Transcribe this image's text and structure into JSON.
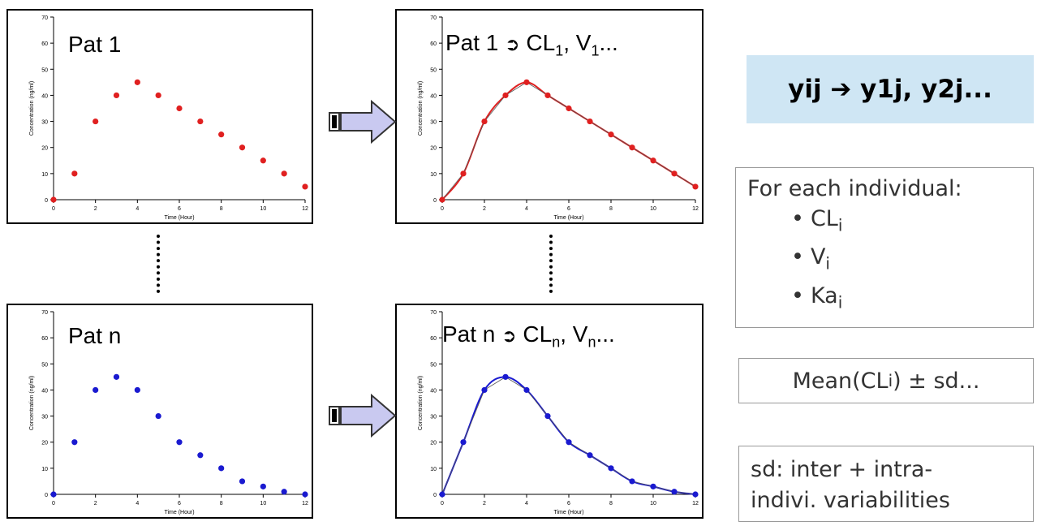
{
  "panels": [
    {
      "id": "p1",
      "title": "Pat 1",
      "color": "#e02020",
      "fitted": false,
      "ylabel": "Concentration (ng/ml)",
      "xlabel": "Time (Hour)",
      "chart": {
        "type": "scatter",
        "x": [
          0,
          1,
          2,
          3,
          4,
          5,
          6,
          7,
          8,
          9,
          10,
          11,
          12
        ],
        "y": [
          0,
          10,
          30,
          40,
          45,
          40,
          35,
          30,
          25,
          20,
          15,
          10,
          5
        ]
      }
    },
    {
      "id": "p2",
      "title": "Pat 1",
      "param1": "CL",
      "sub1": "1",
      "param2": "V",
      "sub2": "1",
      "ellipsis": "...",
      "color": "#e02020",
      "fitted": true,
      "ylabel": "Concentration (ng/ml)",
      "xlabel": "Time (Hour)",
      "chart": {
        "type": "line",
        "x": [
          0,
          1,
          2,
          3,
          4,
          5,
          6,
          7,
          8,
          9,
          10,
          11,
          12
        ],
        "y": [
          0,
          10,
          30,
          40,
          45,
          40,
          35,
          30,
          25,
          20,
          15,
          10,
          5
        ]
      }
    },
    {
      "id": "p3",
      "title": "Pat n",
      "color": "#1a1ad0",
      "fitted": false,
      "ylabel": "Concentration (ng/ml)",
      "xlabel": "Time (Hour)",
      "chart": {
        "type": "scatter",
        "x": [
          0,
          1,
          2,
          3,
          4,
          5,
          6,
          7,
          8,
          9,
          10,
          11,
          12
        ],
        "y": [
          0,
          20,
          40,
          45,
          40,
          30,
          20,
          15,
          10,
          5,
          3,
          1,
          0
        ]
      }
    },
    {
      "id": "p4",
      "title": "Pat n",
      "param1": "CL",
      "sub1": "n",
      "param2": "V",
      "sub2": "n",
      "ellipsis": "...",
      "color": "#1a1ad0",
      "fitted": true,
      "ylabel": "Concentration (ng/ml)",
      "xlabel": "Time (Hour)",
      "chart": {
        "type": "line",
        "x": [
          0,
          1,
          2,
          3,
          4,
          5,
          6,
          7,
          8,
          9,
          10,
          11,
          12
        ],
        "y": [
          0,
          20,
          40,
          45,
          40,
          30,
          20,
          15,
          10,
          5,
          3,
          1,
          0
        ]
      }
    }
  ],
  "axes": {
    "xlim": [
      0,
      12
    ],
    "ylim": [
      0,
      70
    ],
    "xticks": [
      "0",
      "2",
      "4",
      "6",
      "8",
      "10",
      "12"
    ],
    "yticks": [
      "0",
      "10",
      "20",
      "30",
      "40",
      "50",
      "60",
      "70"
    ]
  },
  "right": {
    "yij": "yij ➔ y1j, y2j...",
    "indiv_heading": "For each individual:",
    "items": [
      {
        "name": "CL",
        "sub": "i"
      },
      {
        "name": "V",
        "sub": "i"
      },
      {
        "name": "Ka",
        "sub": "i"
      }
    ],
    "mean_prefix": "Mean(CL",
    "mean_sub": "i",
    "mean_suffix": ") ± sd...",
    "sd_line1": "sd: inter + intra-",
    "sd_line2": "indivi. variabilities"
  },
  "colors": {
    "arrow_fill": "#c9c9f0",
    "arrow_stroke": "#333333",
    "highlight": "#cfe6f4"
  },
  "chart_data": [
    {
      "type": "scatter",
      "series": [
        {
          "values": [
            0,
            10,
            30,
            40,
            45,
            40,
            35,
            30,
            25,
            20,
            15,
            10,
            5
          ]
        }
      ],
      "x": [
        0,
        1,
        2,
        3,
        4,
        5,
        6,
        7,
        8,
        9,
        10,
        11,
        12
      ],
      "title": "Pat 1",
      "xlabel": "Time (Hour)",
      "ylabel": "Concentration (ng/ml)",
      "xlim": [
        0,
        12
      ],
      "ylim": [
        0,
        70
      ]
    },
    {
      "type": "line",
      "series": [
        {
          "values": [
            0,
            10,
            30,
            40,
            45,
            40,
            35,
            30,
            25,
            20,
            15,
            10,
            5
          ]
        }
      ],
      "x": [
        0,
        1,
        2,
        3,
        4,
        5,
        6,
        7,
        8,
        9,
        10,
        11,
        12
      ],
      "title": "Pat 1 ➔ CL1, V1...",
      "xlabel": "Time (Hour)",
      "ylabel": "Concentration (ng/ml)",
      "xlim": [
        0,
        12
      ],
      "ylim": [
        0,
        70
      ]
    },
    {
      "type": "scatter",
      "series": [
        {
          "values": [
            0,
            20,
            40,
            45,
            40,
            30,
            20,
            15,
            10,
            5,
            3,
            1,
            0
          ]
        }
      ],
      "x": [
        0,
        1,
        2,
        3,
        4,
        5,
        6,
        7,
        8,
        9,
        10,
        11,
        12
      ],
      "title": "Pat n",
      "xlabel": "Time (Hour)",
      "ylabel": "Concentration (ng/ml)",
      "xlim": [
        0,
        12
      ],
      "ylim": [
        0,
        70
      ]
    },
    {
      "type": "line",
      "series": [
        {
          "values": [
            0,
            20,
            40,
            45,
            40,
            30,
            20,
            15,
            10,
            5,
            3,
            1,
            0
          ]
        }
      ],
      "x": [
        0,
        1,
        2,
        3,
        4,
        5,
        6,
        7,
        8,
        9,
        10,
        11,
        12
      ],
      "title": "Pat n ➔ CLn, Vn...",
      "xlabel": "Time (Hour)",
      "ylabel": "Concentration (ng/ml)",
      "xlim": [
        0,
        12
      ],
      "ylim": [
        0,
        70
      ]
    }
  ]
}
